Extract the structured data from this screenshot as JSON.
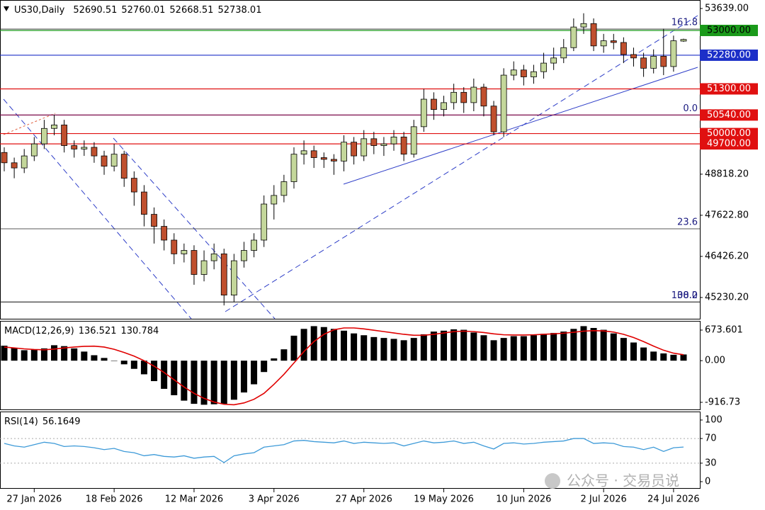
{
  "chart_data": {
    "type": "candlestick",
    "symbol": "US30,Daily",
    "categories": [
      null,
      null,
      null,
      "27 Jan 2026",
      null,
      null,
      null,
      null,
      null,
      null,
      null,
      "18 Feb 2026",
      null,
      null,
      null,
      null,
      null,
      null,
      null,
      "12 Mar 2026",
      null,
      null,
      null,
      null,
      null,
      null,
      null,
      "3 Apr 2026",
      null,
      null,
      null,
      null,
      null,
      null,
      null,
      null,
      "27 Apr 2026",
      null,
      null,
      null,
      null,
      null,
      null,
      null,
      "19 May 2026",
      null,
      null,
      null,
      null,
      null,
      null,
      null,
      "10 Jun 2026",
      null,
      null,
      null,
      null,
      null,
      null,
      null,
      "2 Jul 2026",
      null,
      null,
      null,
      null,
      null,
      null,
      "24 Jul 2026",
      null
    ],
    "open": [
      49450,
      49150,
      49000,
      49350,
      49700,
      50150,
      50250,
      49650,
      49550,
      49600,
      49350,
      49050,
      49400,
      48700,
      48300,
      47650,
      47300,
      46900,
      46500,
      46600,
      45900,
      46300,
      46500,
      45300,
      46300,
      46600,
      46900,
      47950,
      48200,
      48600,
      49400,
      49500,
      49300,
      49250,
      49200,
      49750,
      49350,
      49850,
      49650,
      49700,
      49900,
      49400,
      50200,
      51000,
      50700,
      50900,
      51200,
      50900,
      51350,
      50800,
      50050,
      51700,
      51850,
      51650,
      51800,
      52050,
      52200,
      52500,
      53100,
      53200,
      52550,
      52700,
      52650,
      52300,
      52200,
      51900,
      52250,
      51950,
      52690.51
    ],
    "high": [
      49600,
      49300,
      49550,
      49900,
      50400,
      50550,
      50400,
      49800,
      49800,
      49750,
      49500,
      49700,
      49500,
      48900,
      48500,
      47850,
      47500,
      47100,
      46800,
      46750,
      46600,
      46800,
      46650,
      46500,
      46850,
      47100,
      48200,
      48500,
      48800,
      49600,
      49800,
      49650,
      49450,
      49400,
      49950,
      49900,
      50100,
      50050,
      49900,
      50100,
      50050,
      50400,
      51300,
      51200,
      51100,
      51450,
      51350,
      51600,
      51450,
      50950,
      51900,
      52100,
      52000,
      52000,
      52350,
      52500,
      52750,
      53350,
      53500,
      53350,
      52900,
      52900,
      52800,
      52500,
      52350,
      52450,
      53050,
      52850,
      52760.01
    ],
    "low": [
      48900,
      48700,
      48850,
      49200,
      49550,
      49950,
      49450,
      49300,
      49350,
      49150,
      48800,
      48900,
      48450,
      47900,
      47300,
      46800,
      46600,
      46200,
      46250,
      45600,
      45700,
      46050,
      45000,
      45100,
      46100,
      46400,
      46700,
      47500,
      48000,
      48400,
      49100,
      49000,
      49000,
      48800,
      48900,
      49100,
      49200,
      49400,
      49350,
      49500,
      49200,
      49300,
      50050,
      50400,
      50500,
      50700,
      50600,
      50650,
      50500,
      49950,
      49900,
      51550,
      51400,
      51450,
      51600,
      51850,
      52050,
      52400,
      52900,
      52400,
      52350,
      52450,
      52050,
      51950,
      51650,
      51750,
      51700,
      51800,
      52668.51
    ],
    "close": [
      49150,
      49000,
      49350,
      49700,
      50150,
      50250,
      49650,
      49550,
      49600,
      49350,
      49050,
      49400,
      48700,
      48300,
      47650,
      47300,
      46900,
      46500,
      46600,
      45900,
      46300,
      46500,
      45300,
      46300,
      46600,
      46900,
      47950,
      48200,
      48600,
      49400,
      49500,
      49300,
      49250,
      49200,
      49750,
      49350,
      49850,
      49650,
      49700,
      49900,
      49400,
      50200,
      51000,
      50700,
      50900,
      51200,
      50900,
      51350,
      50800,
      50050,
      51700,
      51850,
      51650,
      51800,
      52050,
      52200,
      52500,
      53100,
      53200,
      52550,
      52700,
      52650,
      52300,
      52200,
      51900,
      52250,
      51950,
      52700,
      52738.01
    ],
    "up_color": "#c4d79b",
    "down_color": "#c0502e",
    "ylim": [
      44612,
      53886
    ],
    "yticks": [
      {
        "value": 53639,
        "label": "53639.00"
      },
      {
        "value": 48818.2,
        "label": "48818.20"
      },
      {
        "value": 47622.8,
        "label": "47622.80"
      },
      {
        "value": 46426.2,
        "label": "46426.20"
      },
      {
        "value": 45230.2,
        "label": "45230.20"
      }
    ],
    "levels": [
      {
        "value": 53000,
        "label": "53000.00",
        "line_color": "#1a9a1a",
        "box_color": "#1a9a1a",
        "text_color": "#000000"
      },
      {
        "value": 52280,
        "label": "52280.00",
        "line_color": "#1c2fc8",
        "box_color": "#1c2fc8",
        "text_color": "#ffffff"
      },
      {
        "value": 51300,
        "label": "51300.00",
        "line_color": "#e01010",
        "box_color": "#e01010",
        "text_color": "#ffffff"
      },
      {
        "value": 50540,
        "label": "50540.00",
        "line_color": "#7a0a4a",
        "box_color": "#e01010",
        "text_color": "#ffffff"
      },
      {
        "value": 50000,
        "label": "50000.00",
        "line_color": "#e01010",
        "box_color": "#e01010",
        "text_color": "#ffffff"
      },
      {
        "value": 49700,
        "label": "49700.00",
        "line_color": "#e01010",
        "box_color": "#e01010",
        "text_color": "#ffffff"
      }
    ],
    "fib_levels": [
      {
        "label": "161.8",
        "value": 53040
      },
      {
        "label": "0.0",
        "value": 50540
      },
      {
        "label": "23.6",
        "value": 47230
      },
      {
        "label": "38.2",
        "value": 45100
      },
      {
        "label": "100.0",
        "value": 45100
      }
    ],
    "macd": {
      "type": "bar",
      "label": "MACD(12,26,9)",
      "color": "#000000",
      "values": [
        330,
        280,
        230,
        240,
        270,
        340,
        320,
        270,
        200,
        120,
        60,
        0,
        -80,
        -180,
        -300,
        -450,
        -620,
        -760,
        -880,
        -950,
        -970,
        -960,
        -950,
        -860,
        -700,
        -520,
        -250,
        50,
        250,
        550,
        700,
        760,
        740,
        700,
        660,
        600,
        560,
        520,
        500,
        480,
        450,
        500,
        580,
        640,
        660,
        690,
        680,
        620,
        560,
        450,
        500,
        540,
        540,
        560,
        590,
        610,
        640,
        700,
        760,
        720,
        680,
        600,
        500,
        400,
        290,
        200,
        160,
        130,
        136.521
      ],
      "signal": {
        "color": "#e00000",
        "values": [
          300,
          280,
          260,
          245,
          240,
          255,
          280,
          300,
          315,
          320,
          300,
          250,
          180,
          100,
          0,
          -120,
          -260,
          -420,
          -580,
          -720,
          -830,
          -910,
          -960,
          -970,
          -930,
          -850,
          -720,
          -520,
          -300,
          -50,
          200,
          420,
          580,
          680,
          720,
          720,
          700,
          670,
          640,
          610,
          580,
          560,
          560,
          580,
          610,
          640,
          650,
          640,
          620,
          590,
          570,
          565,
          565,
          570,
          580,
          590,
          605,
          625,
          650,
          660,
          655,
          630,
          580,
          510,
          420,
          320,
          230,
          165,
          130.784
        ]
      },
      "ylim": [
        -1073,
        876
      ],
      "yticks": [
        673.601,
        {
          "value": 0,
          "label": "0.00"
        },
        -916.73
      ]
    },
    "rsi": {
      "type": "line",
      "label": "RSI(14)",
      "color": "#3d9ad8",
      "values": [
        62,
        58,
        56,
        60,
        64,
        62,
        57,
        58,
        57,
        55,
        52,
        54,
        49,
        47,
        42,
        44,
        41,
        40,
        42,
        38,
        40,
        41,
        31,
        42,
        45,
        47,
        56,
        58,
        60,
        66,
        67,
        65,
        64,
        63,
        66,
        62,
        64,
        63,
        62,
        63,
        58,
        62,
        66,
        63,
        64,
        66,
        62,
        64,
        58,
        53,
        62,
        63,
        61,
        62,
        64,
        65,
        66,
        70,
        70,
        62,
        63,
        62,
        57,
        56,
        52,
        56,
        49,
        55,
        56.1649
      ],
      "ylim": [
        -11.5,
        112.6
      ],
      "yticks": [
        100,
        70,
        30,
        0
      ],
      "levels": [
        70,
        30
      ]
    },
    "watermark": "公众号 · 交易员说"
  }
}
